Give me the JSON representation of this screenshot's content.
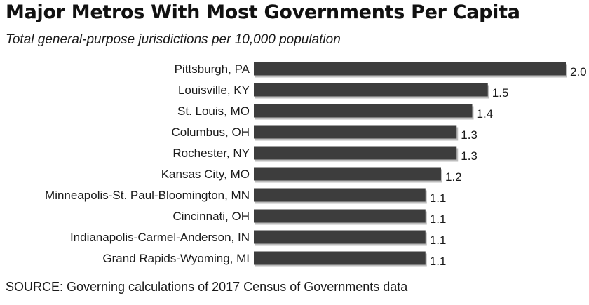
{
  "header": {
    "title": "Major Metros With Most Governments Per Capita",
    "subtitle": "Total general-purpose jurisdictions per 10,000 population"
  },
  "footer": {
    "source": "SOURCE: Governing calculations of 2017 Census of Governments data"
  },
  "colors": {
    "bar": "#3d3d3d",
    "shadow": "#bdbdbd",
    "text": "#1a1a1a"
  },
  "chart_data": {
    "type": "bar",
    "orientation": "horizontal",
    "title": "Major Metros With Most Governments Per Capita",
    "subtitle": "Total general-purpose jurisdictions per 10,000 population",
    "categories": [
      "Pittsburgh, PA",
      "Louisville, KY",
      "St. Louis, MO",
      "Columbus, OH",
      "Rochester, NY",
      "Kansas City, MO",
      "Minneapolis-St. Paul-Bloomington, MN",
      "Cincinnati, OH",
      "Indianapolis-Carmel-Anderson, IN",
      "Grand Rapids-Wyoming, MI"
    ],
    "values": [
      2.0,
      1.5,
      1.4,
      1.3,
      1.3,
      1.2,
      1.1,
      1.1,
      1.1,
      1.1
    ],
    "value_labels": [
      "2.0",
      "1.5",
      "1.4",
      "1.3",
      "1.3",
      "1.2",
      "1.1",
      "1.1",
      "1.1",
      "1.1"
    ],
    "xlim": [
      0,
      2.0
    ],
    "grid": false,
    "legend": "none"
  }
}
